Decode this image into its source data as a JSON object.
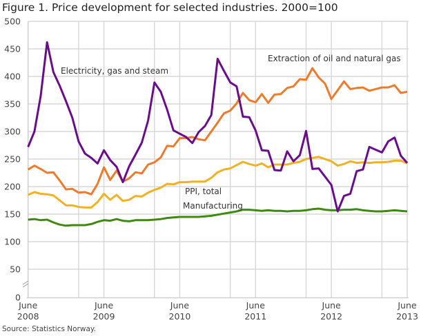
{
  "title": "Figure 1. Price development for selected industries. 2000=100",
  "source": "Source: Statistics Norway.",
  "chart_data": {
    "type": "line",
    "title": "Figure 1. Price development for selected industries. 2000=100",
    "xlabel": "",
    "ylabel": "",
    "ylim": [
      0,
      500
    ],
    "y_axis_break": true,
    "grid": true,
    "yticks": [
      0,
      50,
      100,
      150,
      200,
      250,
      300,
      350,
      400,
      450,
      500
    ],
    "xtick_labels": [
      {
        "month": "June",
        "year": "2008"
      },
      {
        "month": "June",
        "year": "2009"
      },
      {
        "month": "June",
        "year": "2010"
      },
      {
        "month": "June",
        "year": "2011"
      },
      {
        "month": "June",
        "year": "2012"
      },
      {
        "month": "June",
        "year": "2013"
      }
    ],
    "x": [
      "2008-06",
      "2008-07",
      "2008-08",
      "2008-09",
      "2008-10",
      "2008-11",
      "2008-12",
      "2009-01",
      "2009-02",
      "2009-03",
      "2009-04",
      "2009-05",
      "2009-06",
      "2009-07",
      "2009-08",
      "2009-09",
      "2009-10",
      "2009-11",
      "2009-12",
      "2010-01",
      "2010-02",
      "2010-03",
      "2010-04",
      "2010-05",
      "2010-06",
      "2010-07",
      "2010-08",
      "2010-09",
      "2010-10",
      "2010-11",
      "2010-12",
      "2011-01",
      "2011-02",
      "2011-03",
      "2011-04",
      "2011-05",
      "2011-06",
      "2011-07",
      "2011-08",
      "2011-09",
      "2011-10",
      "2011-11",
      "2011-12",
      "2012-01",
      "2012-02",
      "2012-03",
      "2012-04",
      "2012-05",
      "2012-06",
      "2012-07",
      "2012-08",
      "2012-09",
      "2012-10",
      "2012-11",
      "2012-12",
      "2013-01",
      "2013-02",
      "2013-03",
      "2013-04",
      "2013-05",
      "2013-06"
    ],
    "series": [
      {
        "name": "Electricity, gas and steam",
        "color": "#6a0d8c",
        "values": [
          272,
          300,
          365,
          462,
          408,
          383,
          355,
          325,
          282,
          260,
          252,
          242,
          266,
          248,
          236,
          208,
          237,
          258,
          280,
          320,
          389,
          372,
          340,
          302,
          296,
          290,
          279,
          299,
          310,
          330,
          432,
          410,
          389,
          382,
          327,
          326,
          302,
          266,
          265,
          230,
          229,
          264,
          246,
          257,
          301,
          232,
          233,
          218,
          203,
          155,
          183,
          187,
          228,
          231,
          272,
          267,
          262,
          282,
          289,
          256,
          243
        ]
      },
      {
        "name": "Extraction of oil and natural gas",
        "color": "#ee7a2b",
        "values": [
          231,
          238,
          232,
          225,
          226,
          211,
          195,
          196,
          189,
          190,
          186,
          205,
          235,
          212,
          229,
          209,
          215,
          226,
          224,
          240,
          244,
          253,
          274,
          273,
          288,
          288,
          290,
          286,
          284,
          300,
          316,
          333,
          338,
          351,
          370,
          357,
          353,
          368,
          352,
          367,
          368,
          379,
          382,
          395,
          394,
          415,
          398,
          387,
          359,
          375,
          391,
          377,
          379,
          380,
          374,
          377,
          380,
          380,
          384,
          370,
          372
        ]
      },
      {
        "name": "PPI, total",
        "color": "#f0b224",
        "values": [
          185,
          190,
          187,
          186,
          184,
          175,
          166,
          166,
          163,
          162,
          162,
          172,
          187,
          176,
          185,
          174,
          176,
          183,
          182,
          189,
          194,
          198,
          205,
          204,
          208,
          208,
          209,
          209,
          209,
          216,
          226,
          231,
          233,
          239,
          245,
          241,
          238,
          242,
          235,
          240,
          240,
          240,
          243,
          245,
          250,
          252,
          254,
          250,
          246,
          238,
          241,
          246,
          243,
          244,
          243,
          244,
          244,
          245,
          247,
          247,
          242
        ]
      },
      {
        "name": "Manufacturing",
        "color": "#3d8a0e",
        "values": [
          140,
          141,
          139,
          140,
          135,
          131,
          129,
          130,
          130,
          130,
          132,
          136,
          139,
          138,
          141,
          138,
          137,
          139,
          139,
          139,
          140,
          141,
          143,
          144,
          145,
          145,
          145,
          145,
          146,
          147,
          149,
          151,
          153,
          155,
          158,
          158,
          157,
          156,
          157,
          156,
          156,
          155,
          156,
          156,
          157,
          159,
          160,
          158,
          157,
          157,
          158,
          158,
          159,
          157,
          156,
          155,
          155,
          156,
          157,
          156,
          155
        ]
      }
    ]
  }
}
